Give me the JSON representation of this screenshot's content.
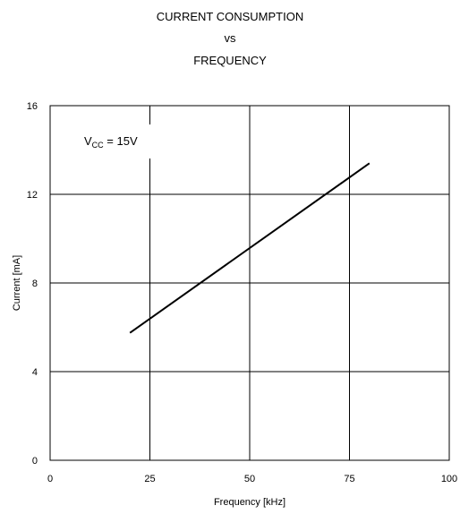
{
  "chart_data": {
    "type": "line",
    "title_lines": [
      "CURRENT CONSUMPTION",
      "vs",
      "FREQUENCY"
    ],
    "xlabel": "Frequency  [kHz]",
    "ylabel": "Current  [mA]",
    "xlim": [
      0,
      100
    ],
    "ylim": [
      0,
      16
    ],
    "xticks": [
      0,
      25,
      50,
      75,
      100
    ],
    "yticks": [
      0,
      4,
      8,
      12,
      16
    ],
    "grid": true,
    "series": [
      {
        "x": [
          20,
          80
        ],
        "y": [
          5.75,
          13.4
        ]
      }
    ],
    "annotation": {
      "main": "V",
      "sub": "CC",
      "rest": " = 15V"
    },
    "colors": {
      "line": "#000000",
      "grid": "#000000"
    }
  }
}
